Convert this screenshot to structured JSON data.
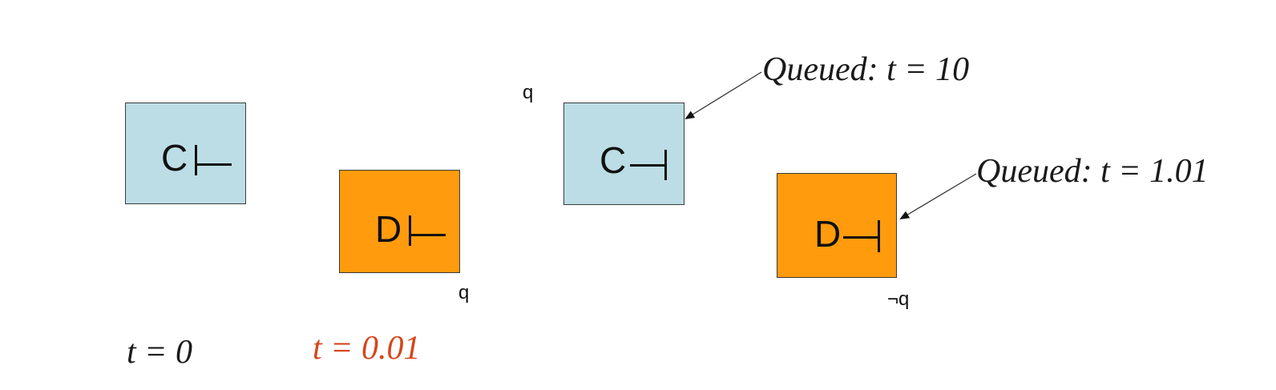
{
  "boxes": {
    "c1": {
      "letter": "C"
    },
    "d1": {
      "letter": "D",
      "side_label": "q"
    },
    "c2": {
      "letter": "C",
      "side_label": "q"
    },
    "d2": {
      "letter": "D",
      "side_label": "¬q"
    }
  },
  "times": {
    "t0": "t = 0",
    "t1": "t = 0.01"
  },
  "queue": {
    "c2": "Queued: t = 10",
    "d2": "Queued: t = 1.01"
  },
  "colors": {
    "blue_box": "#bcdde5",
    "orange_box": "#ff9b0d",
    "highlight_time": "#d6461c"
  }
}
